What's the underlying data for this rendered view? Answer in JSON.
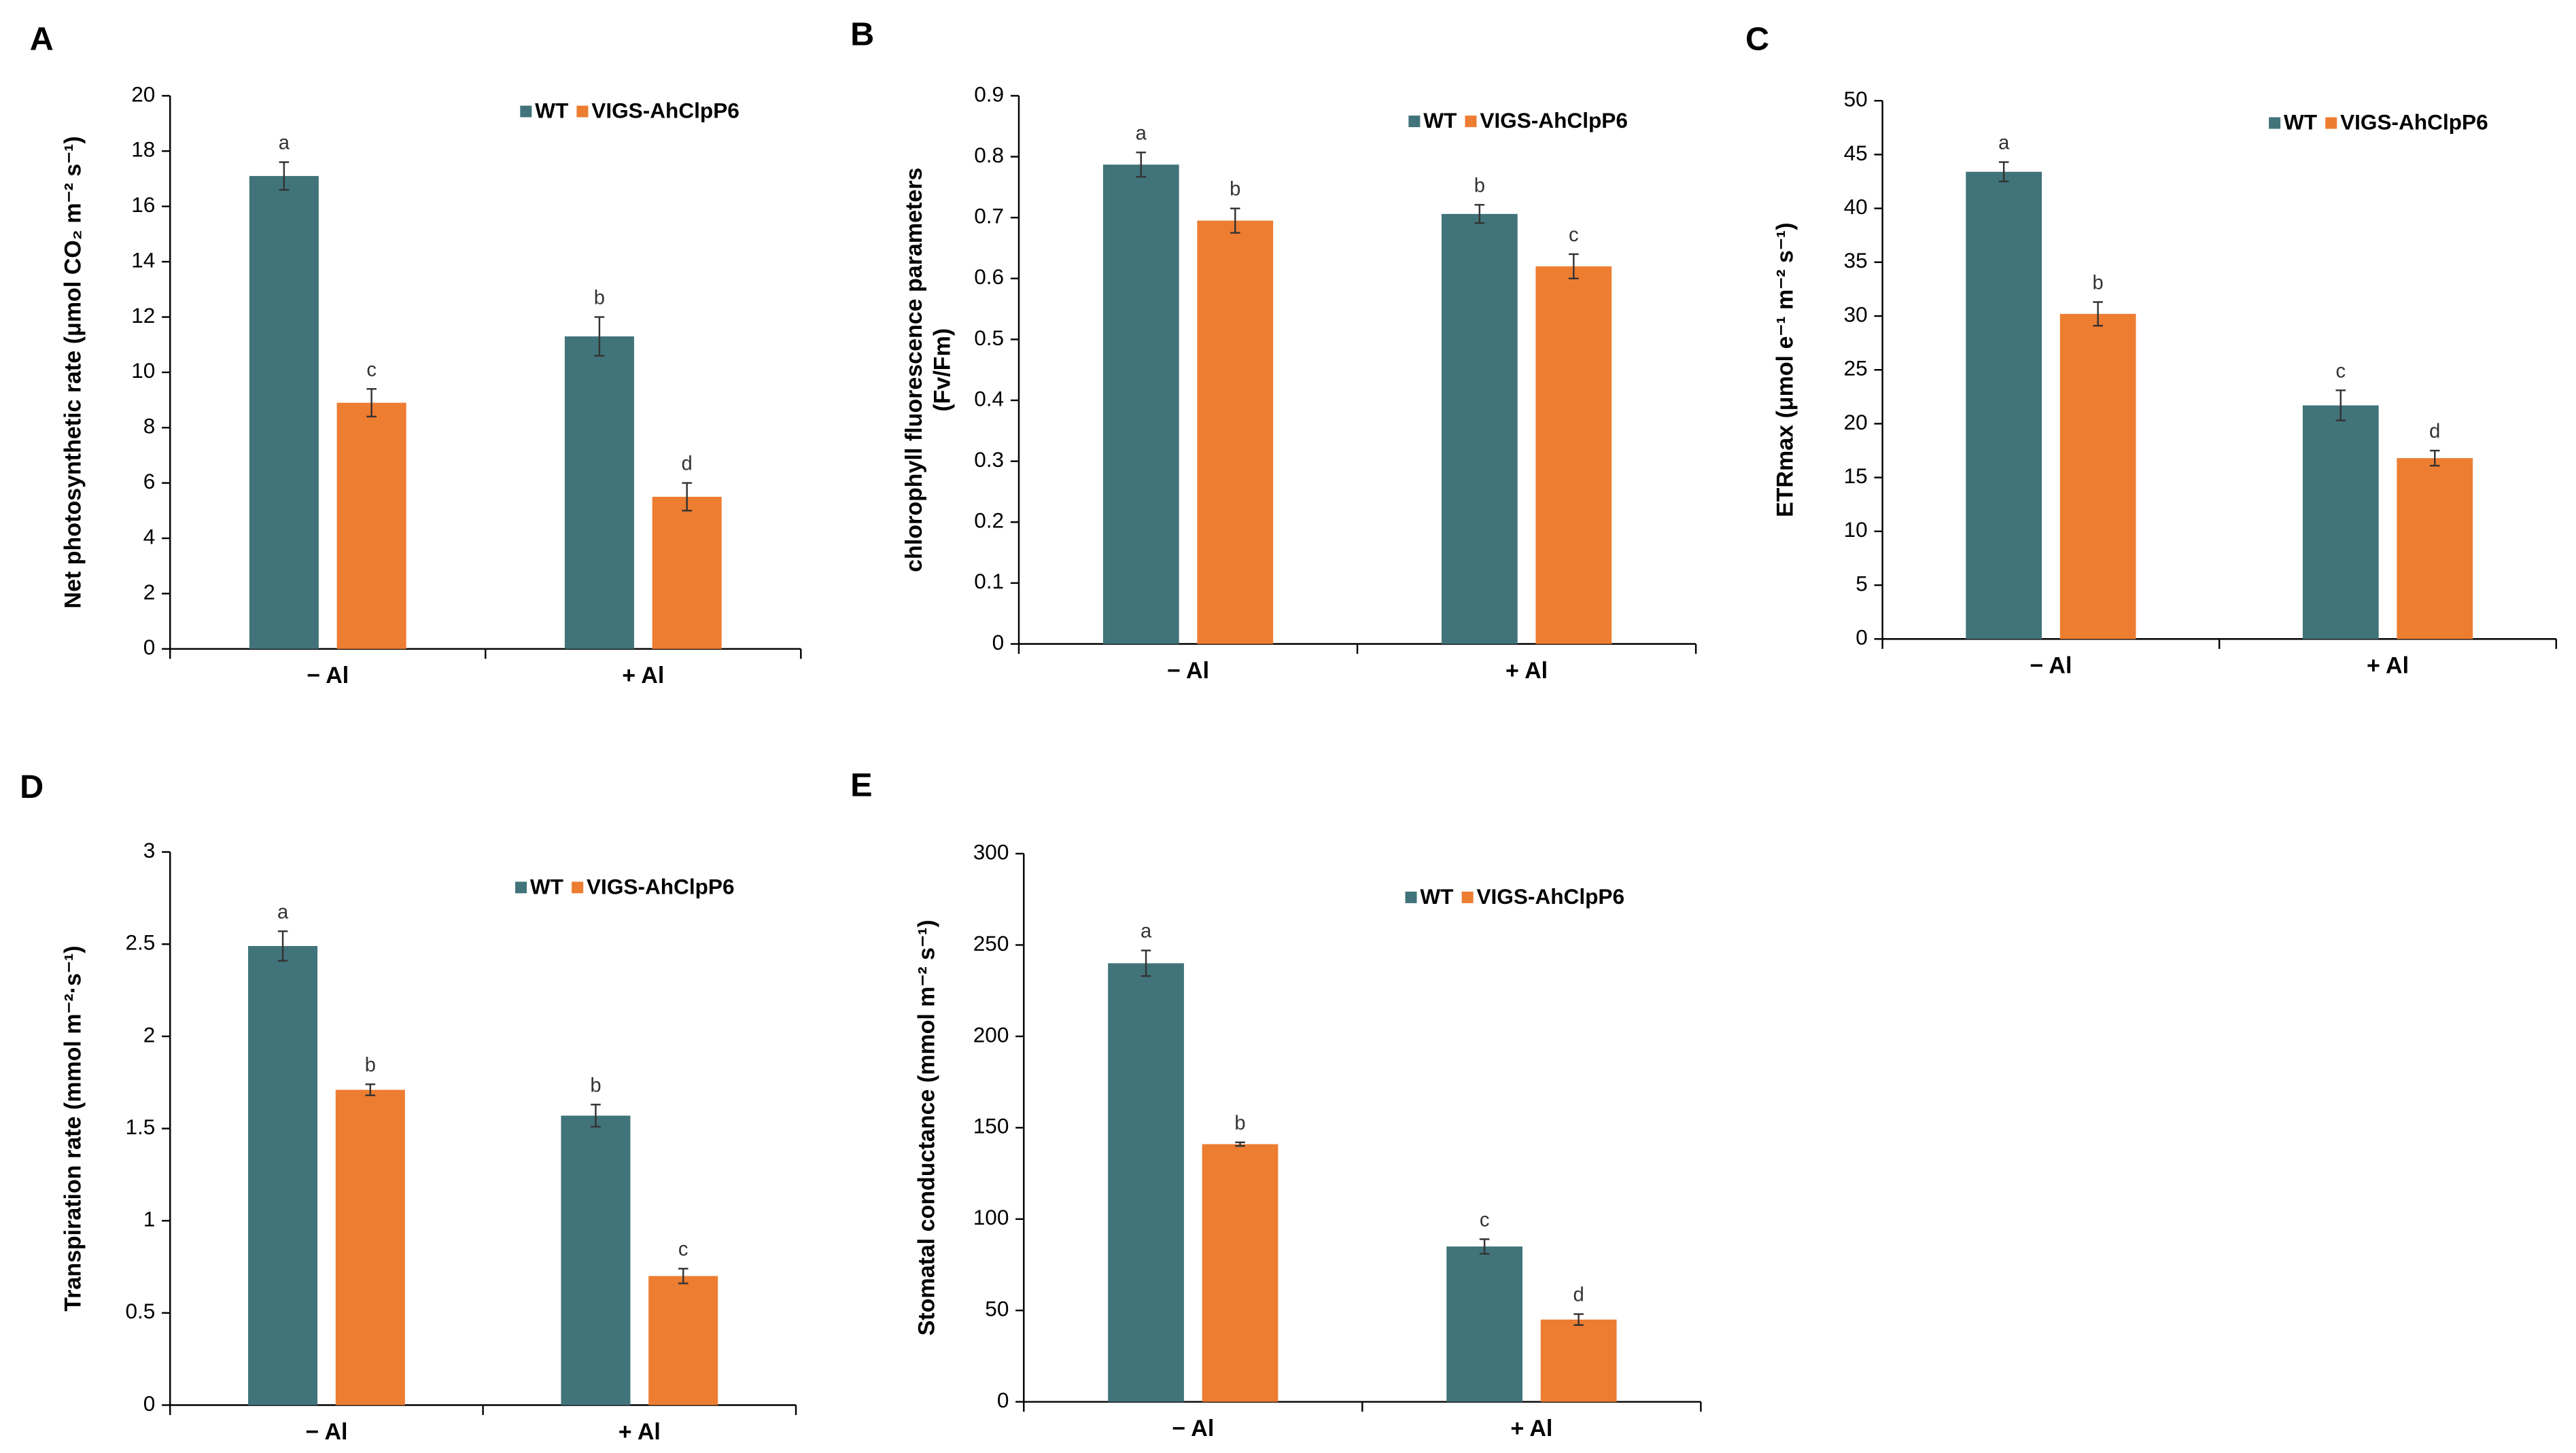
{
  "chart_data": [
    {
      "type": "bar",
      "panel": "A",
      "y_label": [
        "Net photosynthetic rate (μmol CO₂ m⁻² s⁻¹)"
      ],
      "categories": [
        "− Al",
        "+ Al"
      ],
      "series": [
        {
          "name": "WT",
          "color": "#41737a",
          "values": [
            17.1,
            11.3
          ],
          "errors": [
            0.5,
            0.7
          ],
          "letters": [
            "a",
            "b"
          ]
        },
        {
          "name": "VIGS-AhClpP6",
          "color": "#ed7d31",
          "values": [
            8.9,
            5.5
          ],
          "errors": [
            0.5,
            0.5
          ],
          "letters": [
            "c",
            "d"
          ]
        }
      ],
      "ylim": [
        0,
        20
      ],
      "yticks": [
        0,
        2,
        4,
        6,
        8,
        10,
        12,
        14,
        16,
        18,
        20
      ]
    },
    {
      "type": "bar",
      "panel": "B",
      "y_label": [
        "chlorophyll fluorescence parameters",
        "(Fv/Fm)"
      ],
      "categories": [
        "− Al",
        "+ Al"
      ],
      "series": [
        {
          "name": "WT",
          "color": "#41737a",
          "values": [
            0.787,
            0.706
          ],
          "errors": [
            0.02,
            0.015
          ],
          "letters": [
            "a",
            "b"
          ]
        },
        {
          "name": "VIGS-AhClpP6",
          "color": "#ed7d31",
          "values": [
            0.695,
            0.62
          ],
          "errors": [
            0.02,
            0.02
          ],
          "letters": [
            "b",
            "c"
          ]
        }
      ],
      "ylim": [
        0,
        0.9
      ],
      "yticks": [
        0,
        0.1,
        0.2,
        0.3,
        0.4,
        0.5,
        0.6,
        0.7,
        0.8,
        0.9
      ]
    },
    {
      "type": "bar",
      "panel": "C",
      "y_label": [
        "ETRmax (μmol e⁻¹ m⁻² s⁻¹)"
      ],
      "categories": [
        "− Al",
        "+ Al"
      ],
      "series": [
        {
          "name": "WT",
          "color": "#41737a",
          "values": [
            43.4,
            21.7
          ],
          "errors": [
            0.9,
            1.4
          ],
          "letters": [
            "a",
            "c"
          ]
        },
        {
          "name": "VIGS-AhClpP6",
          "color": "#ed7d31",
          "values": [
            30.2,
            16.8
          ],
          "errors": [
            1.1,
            0.7
          ],
          "letters": [
            "b",
            "d"
          ]
        }
      ],
      "ylim": [
        0,
        50
      ],
      "yticks": [
        0,
        5,
        10,
        15,
        20,
        25,
        30,
        35,
        40,
        45,
        50
      ]
    },
    {
      "type": "bar",
      "panel": "D",
      "y_label": [
        "Transpiration rate (mmol m⁻²·s⁻¹)"
      ],
      "categories": [
        "− Al",
        "+ Al"
      ],
      "series": [
        {
          "name": "WT",
          "color": "#41737a",
          "values": [
            2.49,
            1.57
          ],
          "errors": [
            0.08,
            0.06
          ],
          "letters": [
            "a",
            "b"
          ]
        },
        {
          "name": "VIGS-AhClpP6",
          "color": "#ed7d31",
          "values": [
            1.71,
            0.7
          ],
          "errors": [
            0.03,
            0.04
          ],
          "letters": [
            "b",
            "c"
          ]
        }
      ],
      "ylim": [
        0,
        3
      ],
      "yticks": [
        0,
        0.5,
        1,
        1.5,
        2,
        2.5,
        3
      ]
    },
    {
      "type": "bar",
      "panel": "E",
      "y_label": [
        "Stomatal conductance (mmol m⁻² s⁻¹)"
      ],
      "categories": [
        "− Al",
        "+ Al"
      ],
      "series": [
        {
          "name": "WT",
          "color": "#41737a",
          "values": [
            240,
            85
          ],
          "errors": [
            7,
            4
          ],
          "letters": [
            "a",
            "c"
          ]
        },
        {
          "name": "VIGS-AhClpP6",
          "color": "#ed7d31",
          "values": [
            141,
            45
          ],
          "errors": [
            1,
            3
          ],
          "letters": [
            "b",
            "d"
          ]
        }
      ],
      "ylim": [
        0,
        300
      ],
      "yticks": [
        0,
        50,
        100,
        150,
        200,
        250,
        300
      ]
    }
  ]
}
